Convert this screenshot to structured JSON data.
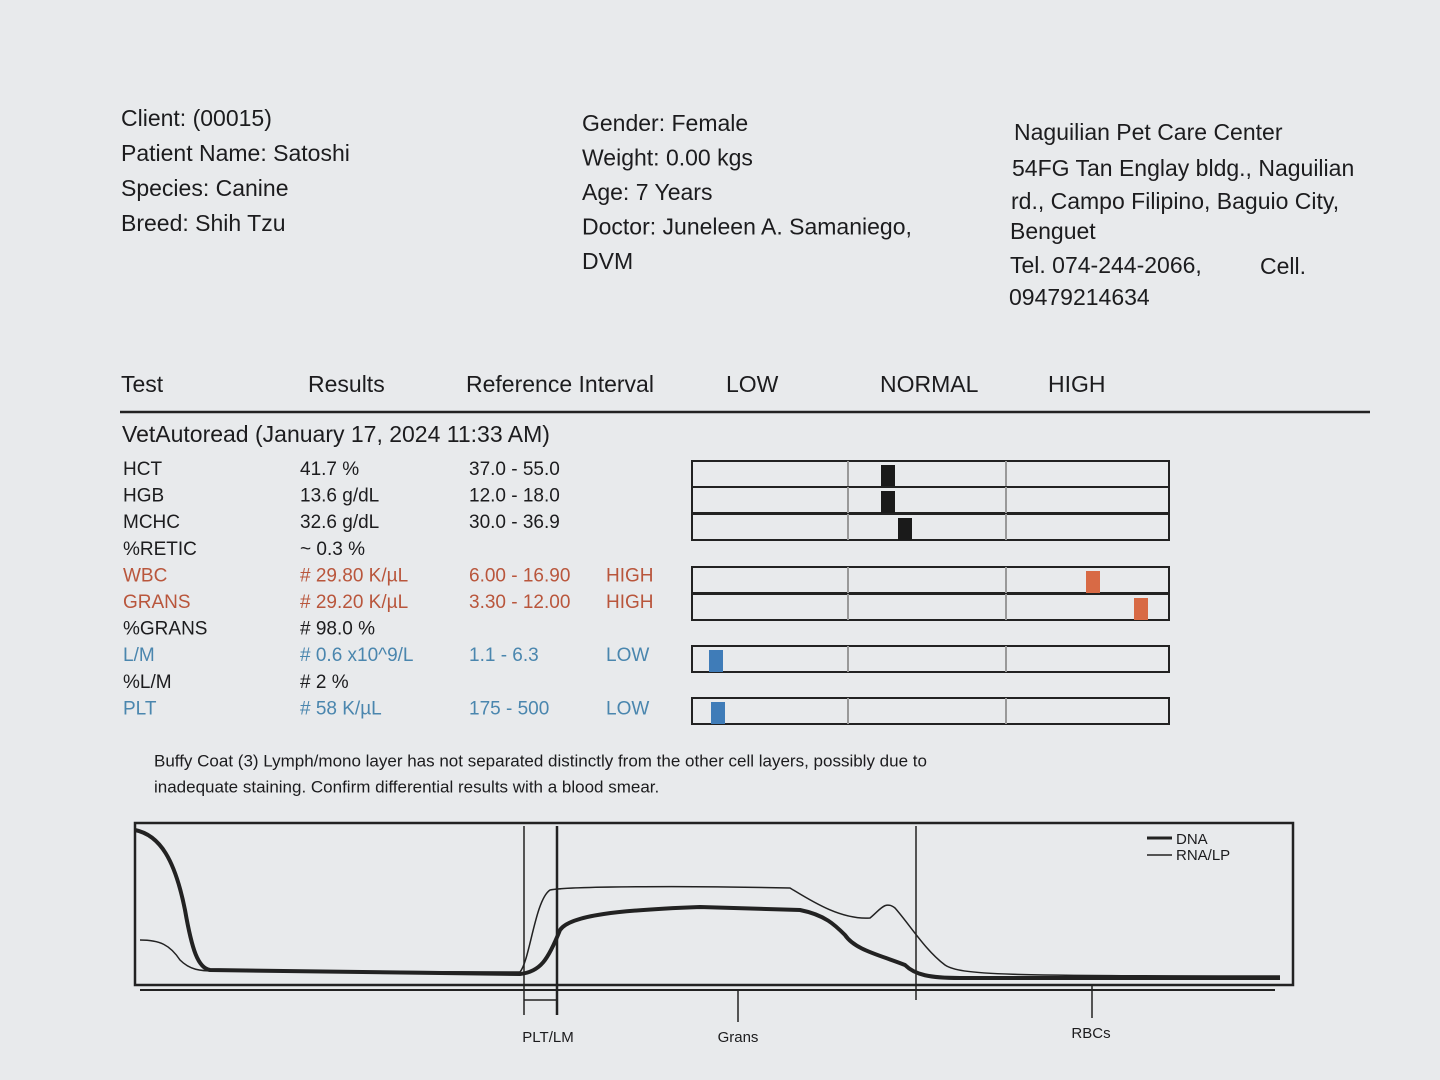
{
  "client": {
    "lines": [
      "Client:  (00015)",
      "Patient Name: Satoshi",
      "Species: Canine",
      "Breed: Shih Tzu"
    ]
  },
  "patient": {
    "lines": [
      "Gender: Female",
      "Weight: 0.00 kgs",
      "Age: 7 Years",
      "Doctor: Juneleen A. Samaniego,",
      "DVM"
    ]
  },
  "clinic": {
    "lines": [
      "Naguilian Pet Care Center",
      "54FG Tan Englay bldg., Naguilian",
      "rd., Campo Filipino, Baguio City,",
      "Benguet",
      "Tel. 074-244-2066,",
      "Cell.",
      "09479214634"
    ]
  },
  "table": {
    "columns": [
      "Test",
      "Results",
      "Reference Interval",
      "LOW",
      "NORMAL",
      "HIGH"
    ],
    "section": "VetAutoread (January 17, 2024 11:33 AM)",
    "rows": [
      {
        "test": "HCT",
        "result": "41.7 %",
        "reference": "37.0 - 55.0"
      },
      {
        "test": "HGB",
        "result": "13.6 g/dL",
        "reference": "12.0 - 18.0"
      },
      {
        "test": "MCHC",
        "result": "32.6 g/dL",
        "reference": "30.0 - 36.9"
      },
      {
        "test": "%RETIC",
        "result": "~ 0.3 %"
      },
      {
        "test": "WBC",
        "result": "# 29.80 K/µL",
        "reference": "6.00 - 16.90",
        "flag": "HIGH"
      },
      {
        "test": "GRANS",
        "result": "# 29.20 K/µL",
        "reference": "3.30 - 12.00",
        "flag": "HIGH"
      },
      {
        "test": "%GRANS",
        "result": "# 98.0 %"
      },
      {
        "test": "L/M",
        "result": "# 0.6 x10^9/L",
        "reference": "1.1 - 6.3",
        "flag": "LOW"
      },
      {
        "test": "%L/M",
        "result": "# 2 %"
      },
      {
        "test": "PLT",
        "result": "# 58 K/µL",
        "reference": "175 - 500",
        "flag": "LOW"
      }
    ]
  },
  "note": {
    "lines": [
      "Buffy Coat (3)  Lymph/mono layer has not separated distinctly from the other cell  layers, possibly due to",
      "inadequate staining.  Confirm differential  results with a blood smear."
    ]
  },
  "histogram": {
    "legend": [
      "DNA",
      "RNA/LP"
    ],
    "axis_labels": [
      "PLT/LM",
      "Grans",
      "RBCs"
    ]
  }
}
